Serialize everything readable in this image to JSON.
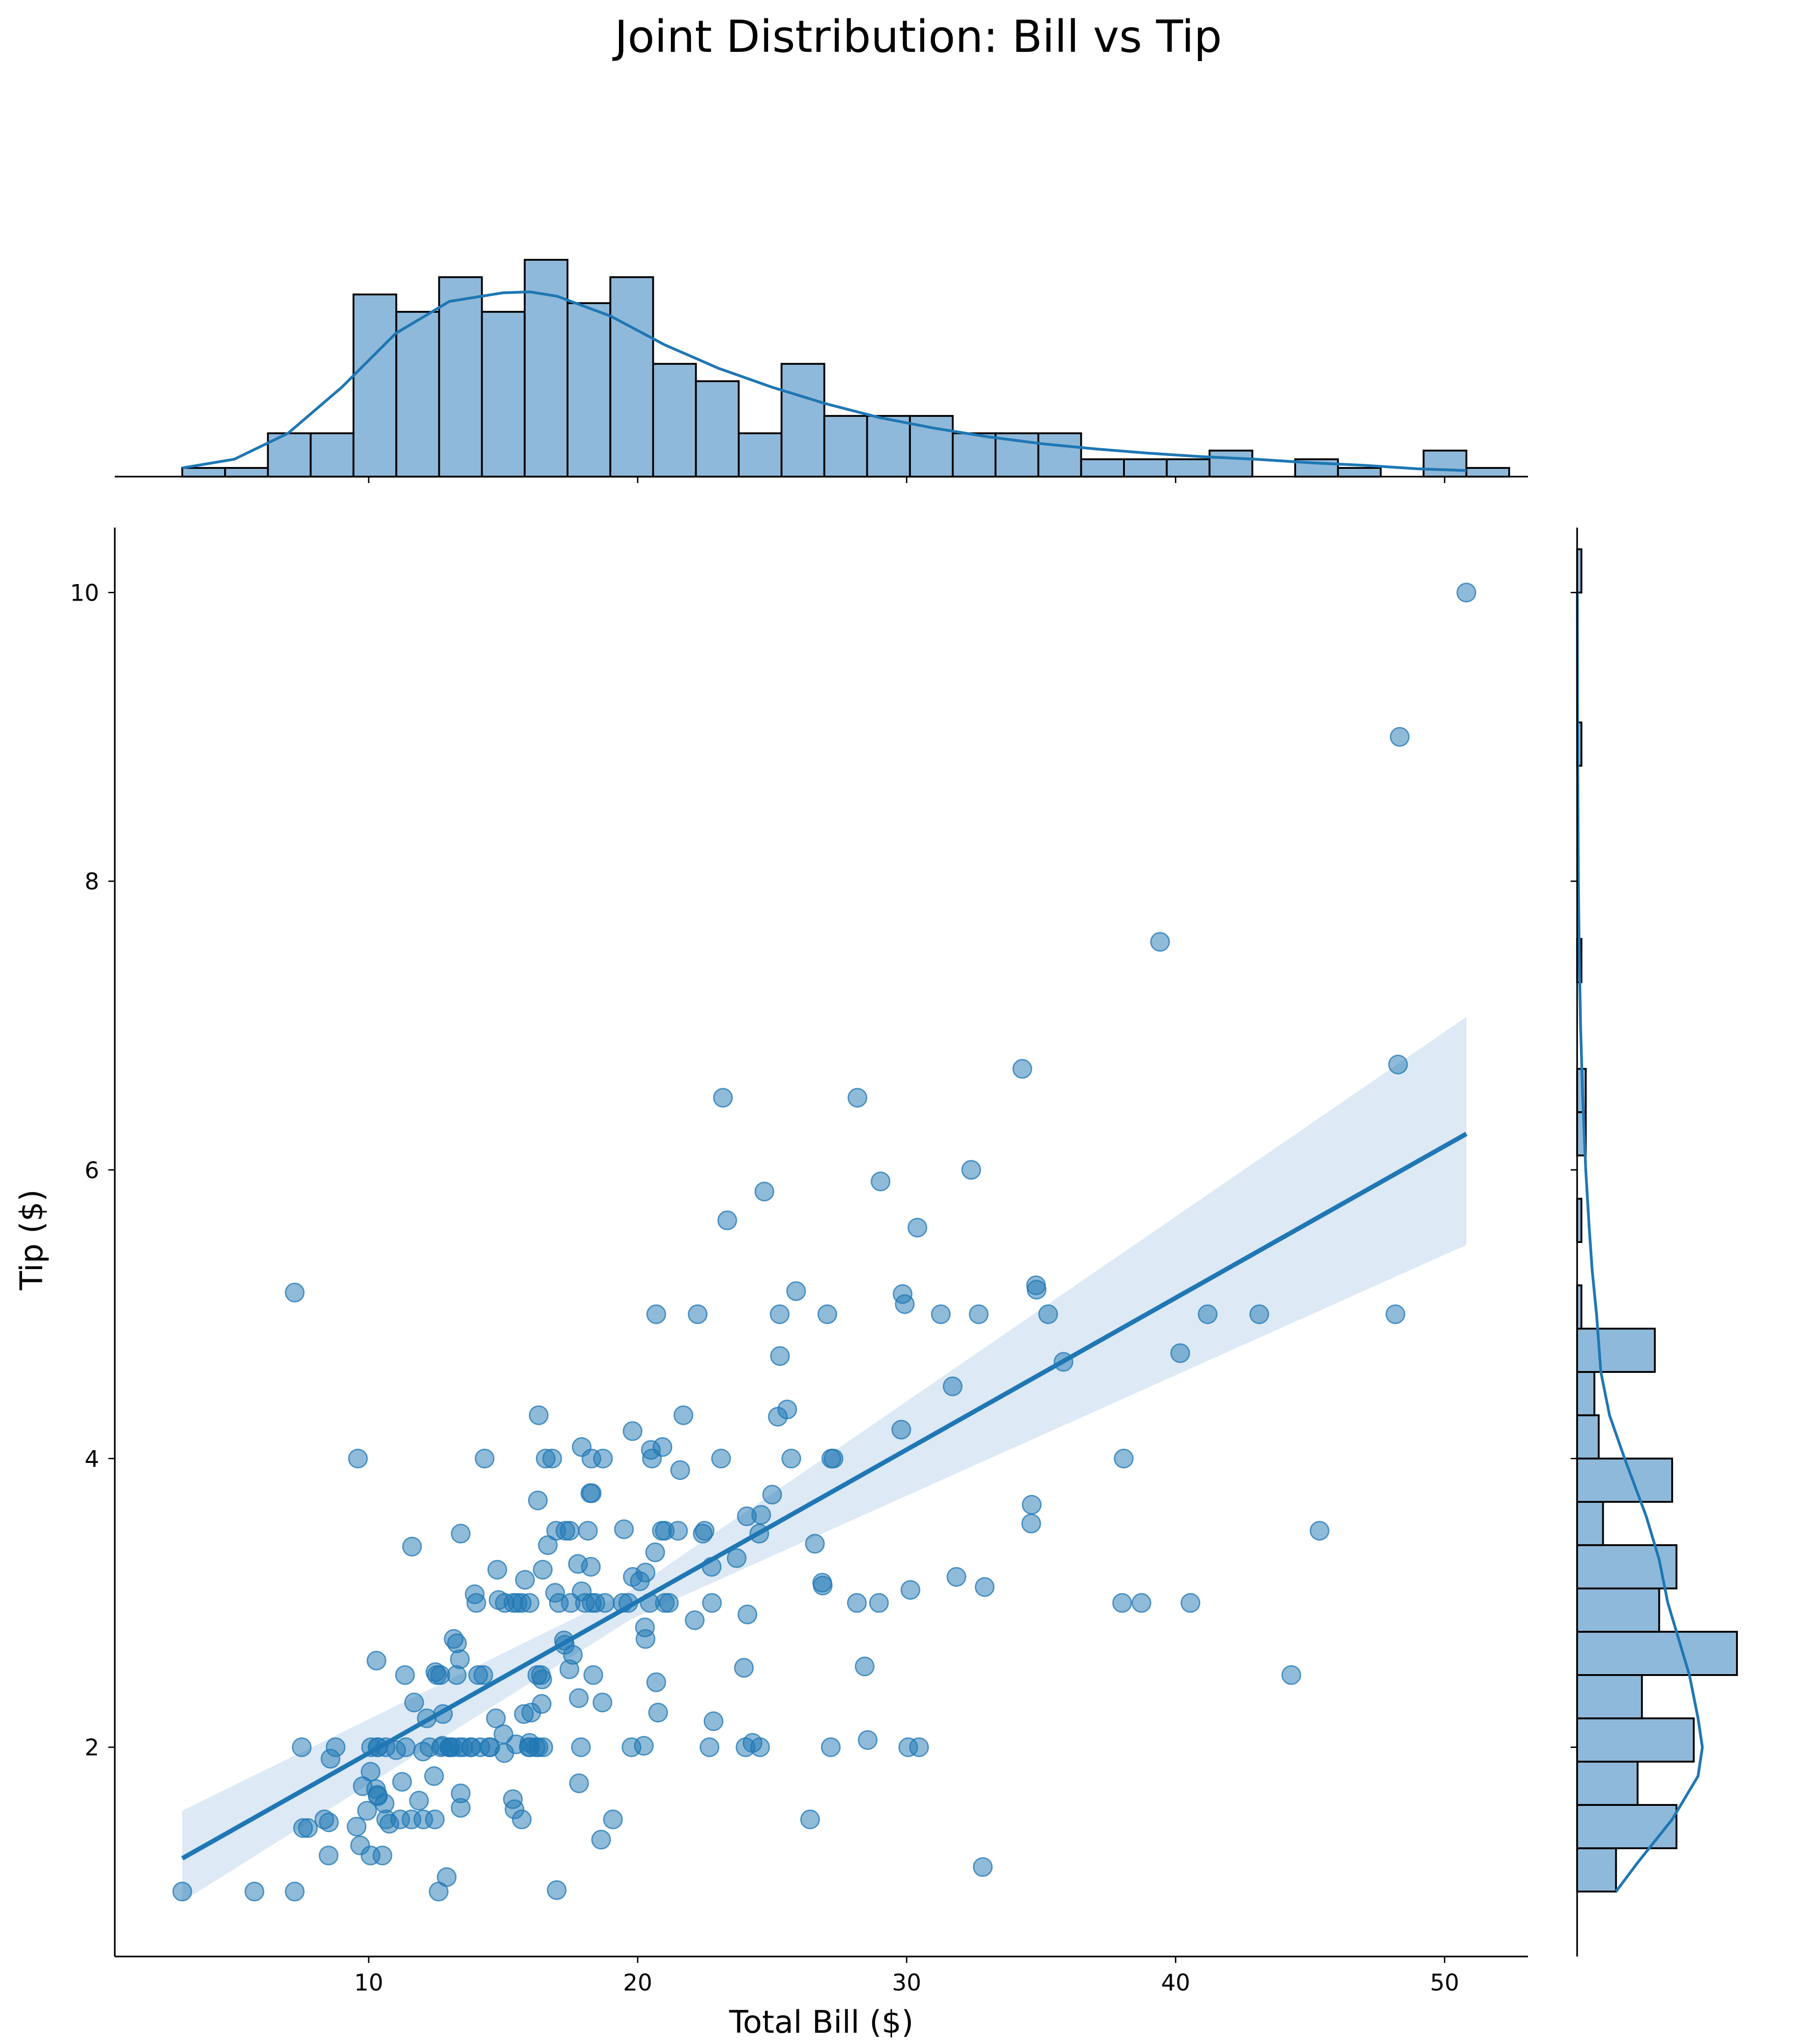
{
  "chart_data": {
    "type": "scatter",
    "title": "Joint Distribution: Bill vs Tip",
    "xlabel": "Total Bill ($)",
    "ylabel": "Tip ($)",
    "xlim": [
      0.56,
      53.1
    ],
    "ylim": [
      0.55,
      10.45
    ],
    "xticks": [
      "10",
      "20",
      "30",
      "40",
      "50"
    ],
    "yticks": [
      "2",
      "4",
      "6",
      "8",
      "10"
    ],
    "grid": false,
    "colors": {
      "points": "#1f77b4",
      "regression_line": "#1f77b4",
      "confidence_band": "#c6dbef",
      "hist_fill": "#8fb9da",
      "hist_edge": "#000000"
    },
    "points": [
      [
        16.99,
        1.01
      ],
      [
        10.34,
        1.66
      ],
      [
        21.01,
        3.5
      ],
      [
        23.68,
        3.31
      ],
      [
        24.59,
        3.61
      ],
      [
        25.29,
        4.71
      ],
      [
        8.77,
        2.0
      ],
      [
        26.88,
        3.12
      ],
      [
        15.04,
        1.96
      ],
      [
        14.78,
        3.23
      ],
      [
        10.27,
        1.71
      ],
      [
        35.26,
        5.0
      ],
      [
        15.42,
        1.57
      ],
      [
        18.43,
        3.0
      ],
      [
        14.83,
        3.02
      ],
      [
        21.58,
        3.92
      ],
      [
        10.33,
        1.67
      ],
      [
        16.29,
        3.71
      ],
      [
        16.97,
        3.5
      ],
      [
        20.65,
        3.35
      ],
      [
        17.92,
        4.08
      ],
      [
        20.29,
        2.75
      ],
      [
        15.77,
        2.23
      ],
      [
        39.42,
        7.58
      ],
      [
        19.82,
        3.18
      ],
      [
        17.81,
        2.34
      ],
      [
        13.37,
        2.0
      ],
      [
        12.69,
        2.0
      ],
      [
        21.7,
        4.3
      ],
      [
        19.65,
        3.0
      ],
      [
        9.55,
        1.45
      ],
      [
        18.35,
        2.5
      ],
      [
        15.06,
        3.0
      ],
      [
        20.69,
        2.45
      ],
      [
        17.78,
        3.27
      ],
      [
        24.06,
        3.6
      ],
      [
        16.31,
        2.0
      ],
      [
        16.93,
        3.07
      ],
      [
        18.69,
        2.31
      ],
      [
        31.27,
        5.0
      ],
      [
        16.04,
        2.24
      ],
      [
        17.46,
        2.54
      ],
      [
        13.94,
        3.06
      ],
      [
        9.68,
        1.32
      ],
      [
        30.4,
        5.6
      ],
      [
        18.29,
        3.0
      ],
      [
        22.23,
        5.0
      ],
      [
        32.4,
        6.0
      ],
      [
        28.55,
        2.05
      ],
      [
        18.04,
        3.0
      ],
      [
        12.54,
        2.5
      ],
      [
        10.29,
        2.6
      ],
      [
        34.81,
        5.2
      ],
      [
        9.94,
        1.56
      ],
      [
        25.56,
        4.34
      ],
      [
        19.49,
        3.51
      ],
      [
        38.01,
        3.0
      ],
      [
        26.41,
        1.5
      ],
      [
        11.24,
        1.76
      ],
      [
        48.27,
        6.73
      ],
      [
        20.29,
        3.21
      ],
      [
        13.81,
        2.0
      ],
      [
        11.02,
        1.98
      ],
      [
        18.29,
        3.76
      ],
      [
        17.59,
        2.64
      ],
      [
        20.08,
        3.15
      ],
      [
        16.45,
        2.47
      ],
      [
        3.07,
        1.0
      ],
      [
        20.23,
        2.01
      ],
      [
        15.01,
        2.09
      ],
      [
        12.02,
        1.97
      ],
      [
        17.07,
        3.0
      ],
      [
        26.86,
        3.14
      ],
      [
        25.28,
        5.0
      ],
      [
        14.73,
        2.2
      ],
      [
        10.51,
        1.25
      ],
      [
        17.92,
        3.08
      ],
      [
        27.2,
        4.0
      ],
      [
        22.76,
        3.0
      ],
      [
        17.29,
        2.71
      ],
      [
        19.44,
        3.0
      ],
      [
        16.66,
        3.4
      ],
      [
        10.07,
        1.83
      ],
      [
        32.68,
        5.0
      ],
      [
        15.98,
        2.03
      ],
      [
        34.83,
        5.17
      ],
      [
        13.03,
        2.0
      ],
      [
        18.28,
        4.0
      ],
      [
        24.71,
        5.85
      ],
      [
        21.16,
        3.0
      ],
      [
        28.97,
        3.0
      ],
      [
        22.49,
        3.5
      ],
      [
        5.75,
        1.0
      ],
      [
        16.32,
        4.3
      ],
      [
        22.75,
        3.25
      ],
      [
        40.17,
        4.73
      ],
      [
        27.28,
        4.0
      ],
      [
        12.03,
        1.5
      ],
      [
        21.01,
        3.0
      ],
      [
        12.46,
        1.5
      ],
      [
        11.35,
        2.5
      ],
      [
        15.38,
        3.0
      ],
      [
        44.3,
        2.5
      ],
      [
        22.42,
        3.48
      ],
      [
        20.92,
        4.08
      ],
      [
        15.36,
        1.64
      ],
      [
        20.49,
        4.06
      ],
      [
        25.21,
        4.29
      ],
      [
        18.24,
        3.76
      ],
      [
        14.31,
        4.0
      ],
      [
        14.0,
        3.0
      ],
      [
        7.25,
        1.0
      ],
      [
        38.07,
        4.0
      ],
      [
        23.95,
        2.55
      ],
      [
        25.71,
        4.0
      ],
      [
        17.31,
        3.5
      ],
      [
        29.93,
        5.07
      ],
      [
        10.65,
        1.5
      ],
      [
        12.43,
        1.8
      ],
      [
        24.08,
        2.92
      ],
      [
        11.69,
        2.31
      ],
      [
        13.42,
        1.68
      ],
      [
        14.26,
        2.5
      ],
      [
        15.95,
        2.0
      ],
      [
        12.48,
        2.52
      ],
      [
        29.8,
        4.2
      ],
      [
        8.52,
        1.48
      ],
      [
        14.52,
        2.0
      ],
      [
        11.38,
        2.0
      ],
      [
        22.82,
        2.18
      ],
      [
        19.08,
        1.5
      ],
      [
        20.27,
        2.83
      ],
      [
        11.17,
        1.5
      ],
      [
        12.26,
        2.0
      ],
      [
        18.26,
        3.25
      ],
      [
        8.51,
        1.25
      ],
      [
        10.33,
        2.0
      ],
      [
        14.15,
        2.0
      ],
      [
        16.0,
        2.0
      ],
      [
        13.16,
        2.75
      ],
      [
        17.47,
        3.5
      ],
      [
        34.3,
        6.7
      ],
      [
        41.19,
        5.0
      ],
      [
        27.05,
        5.0
      ],
      [
        16.43,
        2.3
      ],
      [
        8.35,
        1.5
      ],
      [
        18.64,
        1.36
      ],
      [
        11.87,
        1.63
      ],
      [
        9.78,
        1.73
      ],
      [
        7.51,
        2.0
      ],
      [
        14.07,
        2.5
      ],
      [
        13.13,
        2.0
      ],
      [
        17.26,
        2.74
      ],
      [
        24.55,
        2.0
      ],
      [
        19.77,
        2.0
      ],
      [
        29.85,
        5.14
      ],
      [
        48.17,
        5.0
      ],
      [
        25.0,
        3.75
      ],
      [
        13.39,
        2.61
      ],
      [
        16.49,
        2.0
      ],
      [
        21.5,
        3.5
      ],
      [
        12.66,
        2.5
      ],
      [
        16.21,
        2.0
      ],
      [
        13.81,
        2.0
      ],
      [
        17.51,
        3.0
      ],
      [
        24.52,
        3.48
      ],
      [
        20.76,
        2.24
      ],
      [
        31.71,
        4.5
      ],
      [
        10.59,
        1.61
      ],
      [
        10.63,
        2.0
      ],
      [
        50.81,
        10.0
      ],
      [
        15.81,
        3.16
      ],
      [
        7.25,
        5.15
      ],
      [
        31.85,
        3.18
      ],
      [
        16.82,
        4.0
      ],
      [
        32.9,
        3.11
      ],
      [
        17.89,
        2.0
      ],
      [
        14.48,
        2.0
      ],
      [
        9.6,
        4.0
      ],
      [
        34.63,
        3.55
      ],
      [
        34.65,
        3.68
      ],
      [
        23.33,
        5.65
      ],
      [
        45.35,
        3.5
      ],
      [
        23.17,
        6.5
      ],
      [
        40.55,
        3.0
      ],
      [
        20.69,
        5.0
      ],
      [
        20.9,
        3.5
      ],
      [
        30.46,
        2.0
      ],
      [
        18.15,
        3.5
      ],
      [
        23.1,
        4.0
      ],
      [
        15.69,
        1.5
      ],
      [
        19.81,
        4.19
      ],
      [
        28.44,
        2.56
      ],
      [
        15.48,
        2.02
      ],
      [
        16.58,
        4.0
      ],
      [
        7.56,
        1.44
      ],
      [
        10.34,
        2.0
      ],
      [
        43.11,
        5.0
      ],
      [
        13.0,
        2.0
      ],
      [
        13.51,
        2.0
      ],
      [
        18.71,
        4.0
      ],
      [
        12.74,
        2.01
      ],
      [
        13.0,
        2.0
      ],
      [
        16.4,
        2.5
      ],
      [
        20.53,
        4.0
      ],
      [
        16.47,
        3.23
      ],
      [
        26.59,
        3.41
      ],
      [
        38.73,
        3.0
      ],
      [
        24.27,
        2.03
      ],
      [
        12.76,
        2.23
      ],
      [
        30.06,
        2.0
      ],
      [
        25.89,
        5.16
      ],
      [
        48.33,
        9.0
      ],
      [
        13.27,
        2.5
      ],
      [
        28.17,
        6.5
      ],
      [
        12.9,
        1.1
      ],
      [
        28.15,
        3.0
      ],
      [
        11.59,
        1.5
      ],
      [
        7.74,
        1.44
      ],
      [
        30.14,
        3.09
      ],
      [
        12.16,
        2.2
      ],
      [
        13.42,
        3.48
      ],
      [
        8.58,
        1.92
      ],
      [
        15.98,
        3.0
      ],
      [
        13.42,
        1.58
      ],
      [
        16.27,
        2.5
      ],
      [
        10.09,
        2.0
      ],
      [
        20.45,
        3.0
      ],
      [
        13.28,
        2.72
      ],
      [
        22.12,
        2.88
      ],
      [
        24.01,
        2.0
      ],
      [
        15.69,
        3.0
      ],
      [
        11.61,
        3.39
      ],
      [
        10.77,
        1.47
      ],
      [
        15.53,
        3.0
      ],
      [
        10.07,
        1.25
      ],
      [
        12.6,
        1.0
      ],
      [
        32.83,
        1.17
      ],
      [
        35.83,
        4.67
      ],
      [
        29.03,
        5.92
      ],
      [
        27.18,
        2.0
      ],
      [
        22.67,
        2.0
      ],
      [
        17.82,
        1.75
      ],
      [
        18.78,
        3.0
      ]
    ],
    "regression": {
      "x": [
        3.07,
        50.81
      ],
      "y": [
        1.23,
        6.25
      ],
      "ci_lower": [
        0.93,
        5.48
      ],
      "ci_upper": [
        1.56,
        7.06
      ],
      "ci_center_x": 19.79,
      "ci_center_y": 2.99,
      "ci_center_halfwidth": 0.1
    },
    "marginal_x": {
      "bins_start": 3.07,
      "bin_width": 1.5913,
      "counts": [
        1,
        1,
        5,
        5,
        21,
        19,
        23,
        19,
        25,
        20,
        23,
        13,
        11,
        5,
        13,
        7,
        7,
        7,
        5,
        5,
        5,
        2,
        2,
        2,
        3,
        0,
        2,
        1,
        0,
        3,
        1
      ],
      "count_max": 27,
      "kde_x": [
        3.07,
        5,
        7,
        9,
        11,
        13,
        15,
        16,
        17,
        19,
        21,
        23,
        25,
        27,
        29,
        31,
        33,
        35,
        37,
        39,
        41,
        43,
        45,
        47,
        49,
        50.81
      ],
      "kde_y": [
        1.0,
        2.0,
        5.0,
        10.3,
        16.5,
        20.2,
        21.2,
        21.3,
        20.8,
        18.5,
        15.2,
        12.5,
        10.3,
        8.4,
        6.8,
        5.6,
        4.6,
        3.8,
        3.2,
        2.7,
        2.3,
        2.0,
        1.6,
        1.3,
        0.9,
        0.7
      ]
    },
    "marginal_y": {
      "bins_start": 1.0,
      "bin_width": 0.3,
      "counts": [
        9,
        23,
        14,
        27,
        15,
        37,
        19,
        23,
        6,
        22,
        5,
        4,
        18,
        1,
        0,
        1,
        0,
        2,
        2,
        0,
        0,
        1,
        0,
        0,
        0,
        0,
        1,
        0,
        0,
        0,
        1
      ],
      "count_max": 54,
      "kde_y": [
        1.0,
        1.2,
        1.5,
        1.8,
        2.0,
        2.2,
        2.5,
        2.8,
        3.0,
        3.3,
        3.6,
        4.0,
        4.3,
        4.6,
        5.0,
        5.3,
        5.6,
        6.0,
        6.5,
        7.0,
        7.5,
        8.0,
        9.0,
        10.0
      ],
      "kde_x": [
        9,
        14,
        22,
        28,
        29,
        28,
        26,
        23,
        21,
        19,
        16,
        11,
        7.5,
        5.5,
        4.5,
        3.5,
        2.8,
        2.0,
        1.3,
        0.8,
        0.5,
        0.3,
        0.1,
        0.05
      ]
    }
  }
}
